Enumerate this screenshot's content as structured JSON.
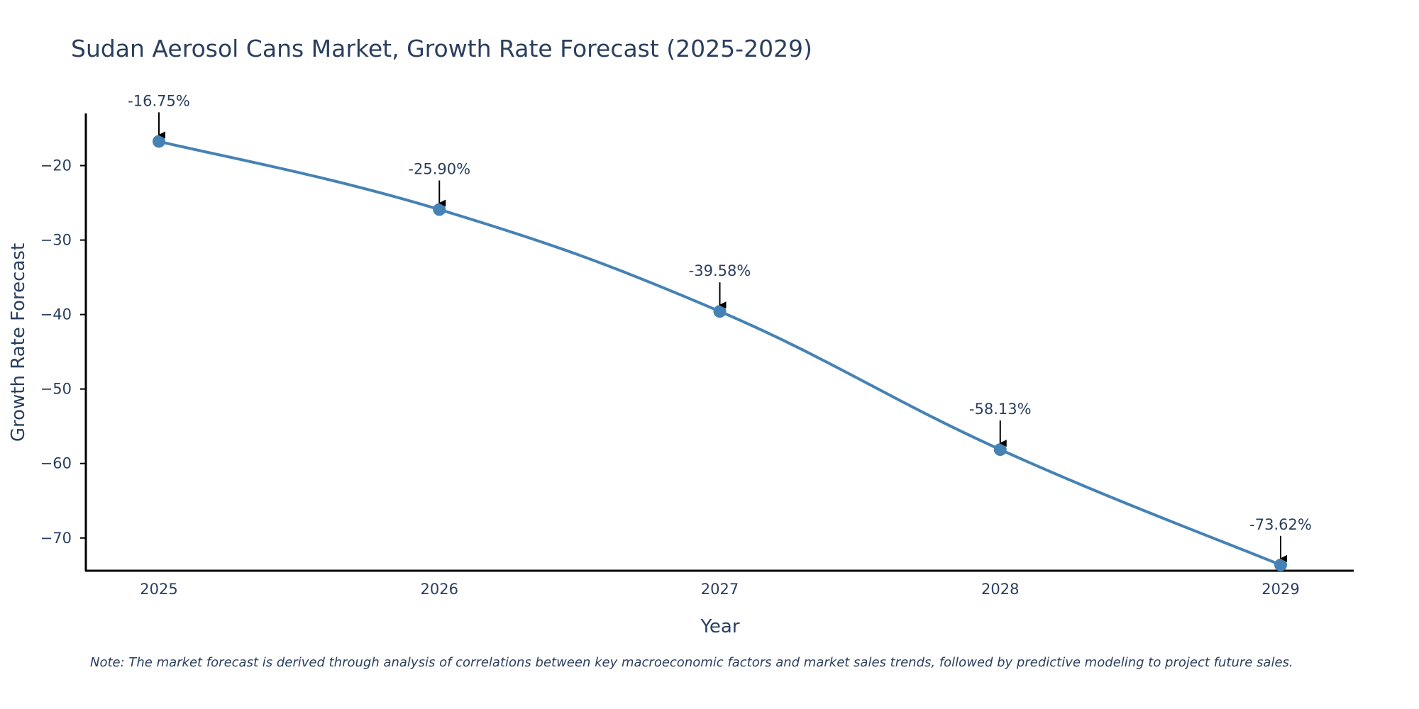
{
  "chart_data": {
    "type": "line",
    "title": "Sudan Aerosol Cans Market, Growth Rate Forecast (2025-2029)",
    "xlabel": "Year",
    "ylabel": "Growth Rate Forecast",
    "categories": [
      "2025",
      "2026",
      "2027",
      "2028",
      "2029"
    ],
    "series": [
      {
        "name": "Growth Rate Forecast",
        "values": [
          -16.75,
          -25.9,
          -39.58,
          -58.13,
          -73.62
        ],
        "labels": [
          "-16.75%",
          "-25.90%",
          "-39.58%",
          "-58.13%",
          "-73.62%"
        ]
      }
    ],
    "yticks": [
      -20,
      -30,
      -40,
      -50,
      -60,
      -70
    ],
    "ytick_labels": [
      "−20",
      "−30",
      "−40",
      "−50",
      "−60",
      "−70"
    ],
    "ylim": [
      -74.4,
      -13.0
    ],
    "grid": false,
    "line_color": "#4682b4",
    "note": "Note: The market forecast is derived through analysis of correlations between key macroeconomic factors and market sales trends, followed by predictive modeling to project future sales."
  }
}
